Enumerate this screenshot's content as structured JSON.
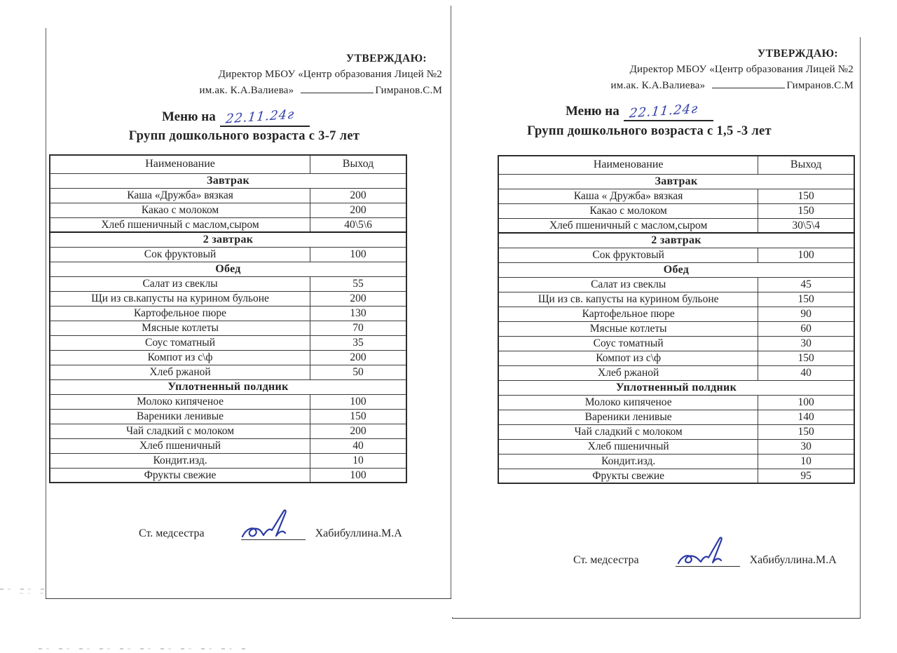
{
  "pages": [
    {
      "approval": {
        "line1": "УТВЕРЖДАЮ:",
        "line2": "Директор МБОУ «Центр образования Лицей №2",
        "line3_prefix": "им.ак. К.А.Валиева»",
        "line3_name": "Гимранов.С.М"
      },
      "title_prefix": "Меню на",
      "date_handwritten": "22.11.24г",
      "subtitle": "Групп дошкольного возраста с 3-7 лет",
      "table": {
        "headers": [
          "Наименование",
          "Выход"
        ],
        "rows": [
          {
            "type": "section",
            "label": "Завтрак"
          },
          {
            "type": "item",
            "name": "Каша  «Дружба» вязкая",
            "value": "200"
          },
          {
            "type": "item",
            "name": "Какао с молоком",
            "value": "200"
          },
          {
            "type": "item",
            "name": "Хлеб пшеничный с маслом,сыром",
            "value": "40\\5\\6"
          },
          {
            "type": "section",
            "label": "2 завтрак",
            "thick": true
          },
          {
            "type": "item",
            "name": "Сок фруктовый",
            "value": "100"
          },
          {
            "type": "section",
            "label": "Обед"
          },
          {
            "type": "item",
            "name": "Салат из свеклы",
            "value": "55"
          },
          {
            "type": "item",
            "name": "Щи из св.капусты на курином бульоне",
            "value": "200"
          },
          {
            "type": "item",
            "name": "Картофельное пюре",
            "value": "130"
          },
          {
            "type": "item",
            "name": "Мясные котлеты",
            "value": "70"
          },
          {
            "type": "item",
            "name": "Соус томатный",
            "value": "35"
          },
          {
            "type": "item",
            "name": "Компот из с\\ф",
            "value": "200"
          },
          {
            "type": "item",
            "name": "Хлеб ржаной",
            "value": "50"
          },
          {
            "type": "section",
            "label": "Уплотненный полдник"
          },
          {
            "type": "item",
            "name": "Молоко кипяченое",
            "value": "100"
          },
          {
            "type": "item",
            "name": "Вареники ленивые",
            "value": "150"
          },
          {
            "type": "item",
            "name": "Чай сладкий с молоком",
            "value": "200"
          },
          {
            "type": "item",
            "name": "Хлеб пшеничный",
            "value": "40"
          },
          {
            "type": "item",
            "name": "Кондит.изд.",
            "value": "10"
          },
          {
            "type": "item",
            "name": "Фрукты свежие",
            "value": "100"
          }
        ]
      },
      "signature": {
        "role": "Ст. медсестра",
        "name": "Хабибуллина.М.А"
      }
    },
    {
      "approval": {
        "line1": "УТВЕРЖДАЮ:",
        "line2": "Директор МБОУ «Центр образования Лицей №2",
        "line3_prefix": "им.ак. К.А.Валиева»",
        "line3_name": "Гимранов.С.М"
      },
      "title_prefix": "Меню на",
      "date_handwritten": "22.11.24г",
      "subtitle": "Групп дошкольного возраста с 1,5 -3 лет",
      "table": {
        "headers": [
          "Наименование",
          "Выход"
        ],
        "rows": [
          {
            "type": "section",
            "label": "Завтрак"
          },
          {
            "type": "item",
            "name": "Каша « Дружба» вязкая",
            "value": "150"
          },
          {
            "type": "item",
            "name": "Какао с молоком",
            "value": "150"
          },
          {
            "type": "item",
            "name": "Хлеб пшеничный с маслом,сыром",
            "value": "30\\5\\4"
          },
          {
            "type": "section",
            "label": "2 завтрак",
            "thick": true
          },
          {
            "type": "item",
            "name": "Сок фруктовый",
            "value": "100"
          },
          {
            "type": "section",
            "label": "Обед"
          },
          {
            "type": "item",
            "name": "Салат из свеклы",
            "value": "45"
          },
          {
            "type": "item",
            "name": "Щи из св. капусты на курином бульоне",
            "value": "150"
          },
          {
            "type": "item",
            "name": "Картофельное пюре",
            "value": "90"
          },
          {
            "type": "item",
            "name": "Мясные котлеты",
            "value": "60"
          },
          {
            "type": "item",
            "name": "Соус томатный",
            "value": "30"
          },
          {
            "type": "item",
            "name": "Компот из с\\ф",
            "value": "150"
          },
          {
            "type": "item",
            "name": "Хлеб ржаной",
            "value": "40"
          },
          {
            "type": "section",
            "label": "Уплотненный полдник"
          },
          {
            "type": "item",
            "name": "Молоко кипяченое",
            "value": "100"
          },
          {
            "type": "item",
            "name": "Вареники ленивые",
            "value": "140"
          },
          {
            "type": "item",
            "name": "Чай сладкий с молоком",
            "value": "150"
          },
          {
            "type": "item",
            "name": "Хлеб пшеничный",
            "value": "30"
          },
          {
            "type": "item",
            "name": "Кондит.изд.",
            "value": "10"
          },
          {
            "type": "item",
            "name": "Фрукты свежие",
            "value": "95"
          }
        ]
      },
      "signature": {
        "role": "Ст. медсестра",
        "name": "Хабибуллина.М.А"
      }
    }
  ],
  "colors": {
    "ink": "#242424",
    "handwriting_blue": "#3340a8",
    "table_border": "#3a3a3a"
  }
}
